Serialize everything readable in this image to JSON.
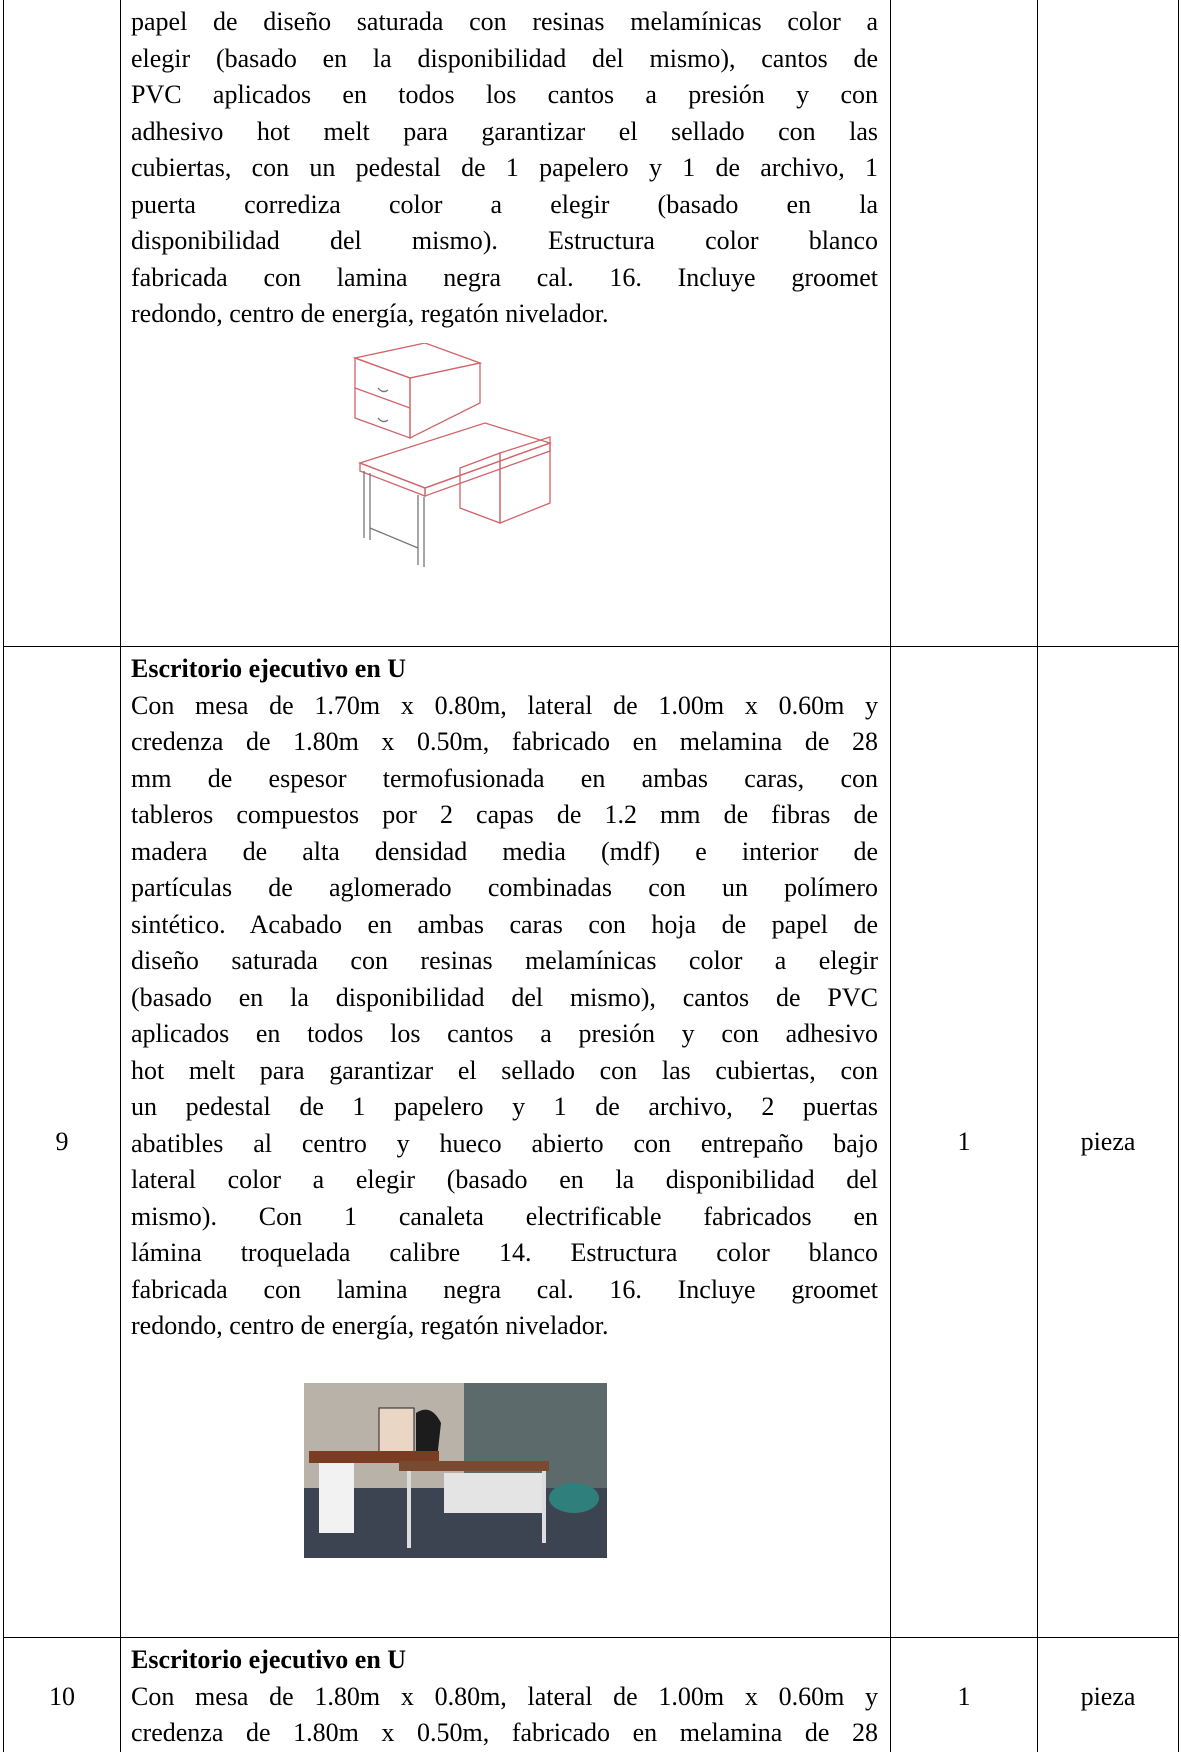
{
  "table": {
    "rows": [
      {
        "description": {
          "lines": [
            "papel de diseño saturada con resinas melamínicas color a",
            "elegir (basado en la disponibilidad del mismo), cantos de",
            "PVC aplicados en todos los cantos a presión y con",
            "adhesivo hot melt para garantizar el sellado con las",
            "cubiertas, con un pedestal de 1 papelero y 1 de archivo, 1",
            "puerta corrediza color a elegir (basado en la",
            "disponibilidad del mismo). Estructura color blanco",
            "fabricada con lamina negra cal. 16. Incluye groomet",
            "redondo, centro de energía, regatón nivelador."
          ]
        }
      },
      {
        "number": 9,
        "description": {
          "title": "Escritorio ejecutivo en U",
          "lines": [
            "Con mesa de 1.70m x 0.80m, lateral de 1.00m x 0.60m y",
            "credenza de 1.80m x 0.50m, fabricado en melamina de 28",
            "mm de espesor termofusionada en ambas caras, con",
            "tableros compuestos por 2 capas de 1.2 mm de fibras de",
            "madera de alta densidad media (mdf) e interior de",
            "partículas de aglomerado combinadas con un polímero",
            "sintético. Acabado en ambas caras con hoja de papel de",
            "diseño saturada con resinas melamínicas color a elegir",
            "(basado en la disponibilidad del mismo), cantos de PVC",
            "aplicados en todos los cantos a presión y con adhesivo",
            "hot melt para garantizar el sellado con las cubiertas, con",
            "un pedestal de 1 papelero y 1 de archivo, 2 puertas",
            "abatibles al centro y hueco abierto con entrepaño bajo",
            "lateral color a elegir (basado en la disponibilidad del",
            "mismo). Con 1 canaleta electrificable fabricados en",
            "lámina troquelada calibre 14. Estructura color blanco",
            "fabricada con lamina negra cal. 16. Incluye groomet",
            "redondo, centro de energía, regatón nivelador."
          ]
        },
        "quantity": 1,
        "unit": "pieza"
      },
      {
        "number": 10,
        "description": {
          "title": "Escritorio ejecutivo en U",
          "lines": [
            "Con mesa de 1.80m x 0.80m, lateral de 1.00m x 0.60m y",
            "credenza de 1.80m x 0.50m, fabricado en melamina de 28"
          ]
        },
        "quantity": 1,
        "unit": "pieza"
      }
    ]
  }
}
